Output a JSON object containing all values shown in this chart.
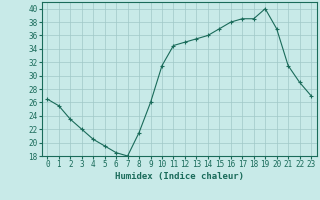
{
  "x": [
    0,
    1,
    2,
    3,
    4,
    5,
    6,
    7,
    8,
    9,
    10,
    11,
    12,
    13,
    14,
    15,
    16,
    17,
    18,
    19,
    20,
    21,
    22,
    23
  ],
  "y": [
    26.5,
    25.5,
    23.5,
    22,
    20.5,
    19.5,
    18.5,
    18,
    21.5,
    26,
    31.5,
    34.5,
    35,
    35.5,
    36,
    37,
    38,
    38.5,
    38.5,
    40,
    37,
    31.5,
    29,
    27
  ],
  "line_color": "#1a6b5a",
  "marker": "+",
  "bg_color": "#c8eae8",
  "grid_color": "#a0c8c8",
  "xlabel": "Humidex (Indice chaleur)",
  "ylim": [
    18,
    41
  ],
  "xlim": [
    -0.5,
    23.5
  ],
  "yticks": [
    18,
    20,
    22,
    24,
    26,
    28,
    30,
    32,
    34,
    36,
    38,
    40
  ],
  "xticks": [
    0,
    1,
    2,
    3,
    4,
    5,
    6,
    7,
    8,
    9,
    10,
    11,
    12,
    13,
    14,
    15,
    16,
    17,
    18,
    19,
    20,
    21,
    22,
    23
  ],
  "label_fontsize": 6.5,
  "tick_fontsize": 5.5
}
